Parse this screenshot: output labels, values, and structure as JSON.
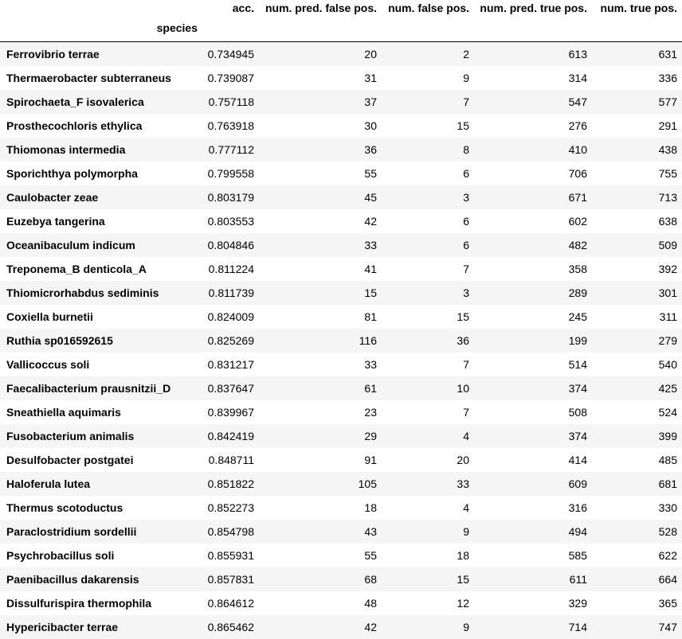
{
  "table": {
    "columns": [
      "acc.",
      "num. pred. false pos.",
      "num. false pos.",
      "num. pred. true pos.",
      "num. true pos."
    ],
    "index_name": "species",
    "rows": [
      {
        "species": "Ferrovibrio terrae",
        "acc": "0.734945",
        "pred_fp": "20",
        "fp": "2",
        "pred_tp": "613",
        "tp": "631"
      },
      {
        "species": "Thermaerobacter subterraneus",
        "acc": "0.739087",
        "pred_fp": "31",
        "fp": "9",
        "pred_tp": "314",
        "tp": "336"
      },
      {
        "species": "Spirochaeta_F isovalerica",
        "acc": "0.757118",
        "pred_fp": "37",
        "fp": "7",
        "pred_tp": "547",
        "tp": "577"
      },
      {
        "species": "Prosthecochloris ethylica",
        "acc": "0.763918",
        "pred_fp": "30",
        "fp": "15",
        "pred_tp": "276",
        "tp": "291"
      },
      {
        "species": "Thiomonas intermedia",
        "acc": "0.777112",
        "pred_fp": "36",
        "fp": "8",
        "pred_tp": "410",
        "tp": "438"
      },
      {
        "species": "Sporichthya polymorpha",
        "acc": "0.799558",
        "pred_fp": "55",
        "fp": "6",
        "pred_tp": "706",
        "tp": "755"
      },
      {
        "species": "Caulobacter zeae",
        "acc": "0.803179",
        "pred_fp": "45",
        "fp": "3",
        "pred_tp": "671",
        "tp": "713"
      },
      {
        "species": "Euzebya tangerina",
        "acc": "0.803553",
        "pred_fp": "42",
        "fp": "6",
        "pred_tp": "602",
        "tp": "638"
      },
      {
        "species": "Oceanibaculum indicum",
        "acc": "0.804846",
        "pred_fp": "33",
        "fp": "6",
        "pred_tp": "482",
        "tp": "509"
      },
      {
        "species": "Treponema_B denticola_A",
        "acc": "0.811224",
        "pred_fp": "41",
        "fp": "7",
        "pred_tp": "358",
        "tp": "392"
      },
      {
        "species": "Thiomicrorhabdus sediminis",
        "acc": "0.811739",
        "pred_fp": "15",
        "fp": "3",
        "pred_tp": "289",
        "tp": "301"
      },
      {
        "species": "Coxiella burnetii",
        "acc": "0.824009",
        "pred_fp": "81",
        "fp": "15",
        "pred_tp": "245",
        "tp": "311"
      },
      {
        "species": "Ruthia sp016592615",
        "acc": "0.825269",
        "pred_fp": "116",
        "fp": "36",
        "pred_tp": "199",
        "tp": "279"
      },
      {
        "species": "Vallicoccus soli",
        "acc": "0.831217",
        "pred_fp": "33",
        "fp": "7",
        "pred_tp": "514",
        "tp": "540"
      },
      {
        "species": "Faecalibacterium prausnitzii_D",
        "acc": "0.837647",
        "pred_fp": "61",
        "fp": "10",
        "pred_tp": "374",
        "tp": "425"
      },
      {
        "species": "Sneathiella aquimaris",
        "acc": "0.839967",
        "pred_fp": "23",
        "fp": "7",
        "pred_tp": "508",
        "tp": "524"
      },
      {
        "species": "Fusobacterium animalis",
        "acc": "0.842419",
        "pred_fp": "29",
        "fp": "4",
        "pred_tp": "374",
        "tp": "399"
      },
      {
        "species": "Desulfobacter postgatei",
        "acc": "0.848711",
        "pred_fp": "91",
        "fp": "20",
        "pred_tp": "414",
        "tp": "485"
      },
      {
        "species": "Haloferula lutea",
        "acc": "0.851822",
        "pred_fp": "105",
        "fp": "33",
        "pred_tp": "609",
        "tp": "681"
      },
      {
        "species": "Thermus scotoductus",
        "acc": "0.852273",
        "pred_fp": "18",
        "fp": "4",
        "pred_tp": "316",
        "tp": "330"
      },
      {
        "species": "Paraclostridium sordellii",
        "acc": "0.854798",
        "pred_fp": "43",
        "fp": "9",
        "pred_tp": "494",
        "tp": "528"
      },
      {
        "species": "Psychrobacillus soli",
        "acc": "0.855931",
        "pred_fp": "55",
        "fp": "18",
        "pred_tp": "585",
        "tp": "622"
      },
      {
        "species": "Paenibacillus dakarensis",
        "acc": "0.857831",
        "pred_fp": "68",
        "fp": "15",
        "pred_tp": "611",
        "tp": "664"
      },
      {
        "species": "Dissulfurispira thermophila",
        "acc": "0.864612",
        "pred_fp": "48",
        "fp": "12",
        "pred_tp": "329",
        "tp": "365"
      },
      {
        "species": "Hypericibacter terrae",
        "acc": "0.865462",
        "pred_fp": "42",
        "fp": "9",
        "pred_tp": "714",
        "tp": "747"
      }
    ]
  }
}
